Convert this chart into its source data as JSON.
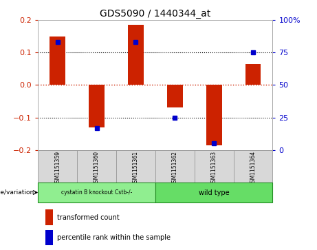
{
  "title": "GDS5090 / 1440344_at",
  "samples": [
    "GSM1151359",
    "GSM1151360",
    "GSM1151361",
    "GSM1151362",
    "GSM1151363",
    "GSM1151364"
  ],
  "red_values": [
    0.15,
    -0.13,
    0.185,
    -0.07,
    -0.185,
    0.065
  ],
  "blue_values": [
    83,
    17,
    83,
    25,
    5,
    75
  ],
  "ylim_left": [
    -0.2,
    0.2
  ],
  "ylim_right": [
    0,
    100
  ],
  "left_yticks": [
    -0.2,
    -0.1,
    0,
    0.1,
    0.2
  ],
  "right_yticks": [
    0,
    25,
    50,
    75,
    100
  ],
  "right_yticklabels": [
    "0",
    "25",
    "50",
    "75",
    "100%"
  ],
  "bar_color": "#cc2200",
  "dot_color": "#0000cc",
  "zero_line_color": "#cc2200",
  "group1_label": "cystatin B knockout Cstb-/-",
  "group2_label": "wild type",
  "group1_color": "#90EE90",
  "group2_color": "#66DD66",
  "group_border_color": "#228B22",
  "genotype_label": "genotype/variation",
  "legend_red": "transformed count",
  "legend_blue": "percentile rank within the sample",
  "bar_width": 0.4,
  "sample_box_color": "#d8d8d8",
  "sample_box_edge": "#999999",
  "tick_label_color_left": "#cc2200",
  "tick_label_color_right": "#0000cc"
}
